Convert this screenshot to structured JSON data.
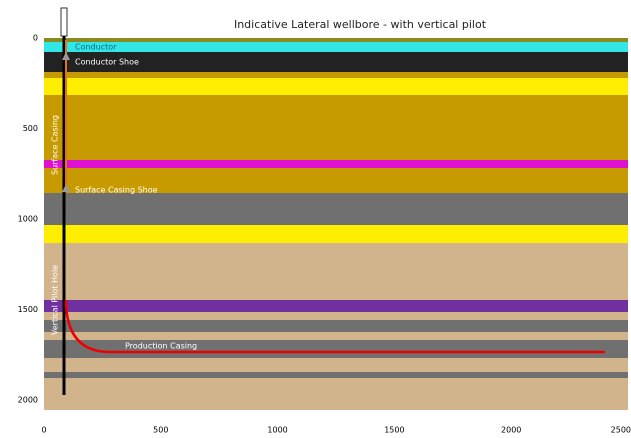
{
  "title": "Indicative Lateral wellbore  - with vertical pilot",
  "y_axis": {
    "ticks": [
      0,
      500,
      1000,
      1500,
      2000
    ]
  },
  "x_axis": {
    "ticks": [
      0,
      500,
      1000,
      1500,
      2000,
      2500
    ]
  },
  "labels": {
    "conductor": "Conductor",
    "conductor_shoe": "Conductor Shoe",
    "surface_casing": "Surface Casing",
    "surface_casing_shoe": "Surface Casing Shoe",
    "vertical_pilot_hole": "Vertical Pilot Hole",
    "production_casing": "Production Casing"
  }
}
